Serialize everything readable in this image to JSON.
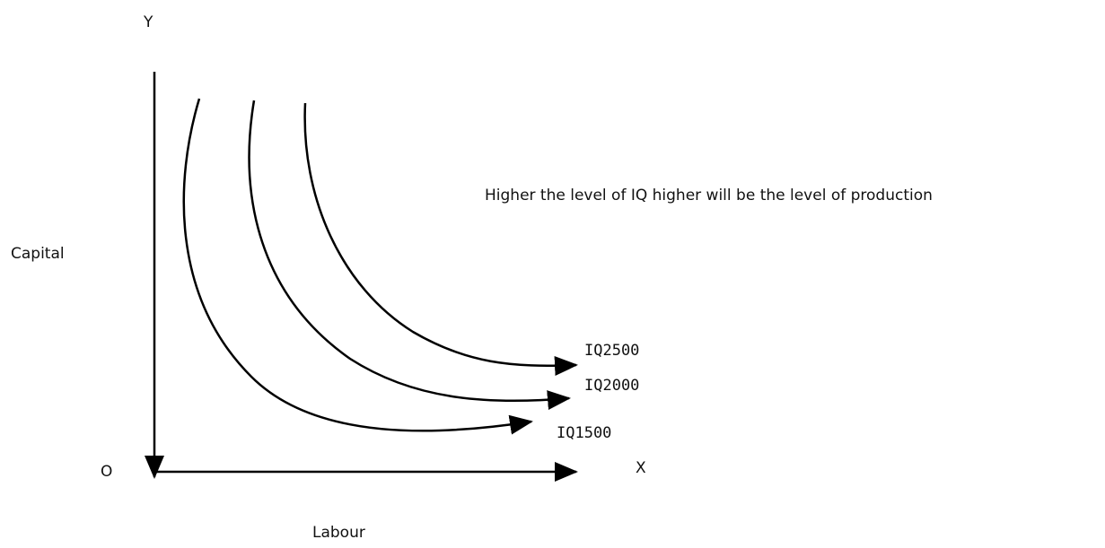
{
  "axes": {
    "y_label": "Y",
    "y_title": "Capital",
    "origin": "O",
    "x_label": "X",
    "x_title": "Labour"
  },
  "note": "Higher the level of IQ higher will be the level of production",
  "curves": [
    {
      "label": "IQ2500"
    },
    {
      "label": "IQ2000"
    },
    {
      "label": "IQ1500"
    }
  ]
}
